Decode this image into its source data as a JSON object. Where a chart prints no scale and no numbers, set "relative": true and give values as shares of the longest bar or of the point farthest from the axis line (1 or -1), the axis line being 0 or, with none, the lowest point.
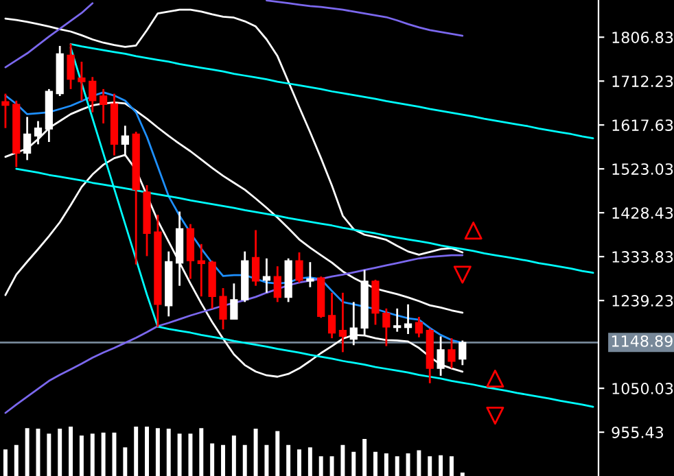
{
  "chart_data": [
    {
      "type": "candlestick",
      "categories": [
        null,
        null,
        null,
        null,
        null,
        null,
        null,
        null,
        null,
        null,
        null,
        null,
        null,
        null,
        null,
        null,
        null,
        null,
        null,
        null,
        null,
        null,
        null,
        null,
        null,
        null,
        null,
        null,
        null,
        null,
        null,
        null,
        null,
        null,
        null,
        null,
        null,
        null,
        null,
        null,
        null,
        null,
        null,
        null,
        null,
        null,
        null,
        null,
        null,
        null,
        null,
        null,
        null,
        null,
        null
      ],
      "ohlc": [
        [
          1668,
          1685,
          1611,
          1660
        ],
        [
          1662,
          1670,
          1527,
          1557
        ],
        [
          1557,
          1635,
          1542,
          1598
        ],
        [
          1594,
          1626,
          1576,
          1611
        ],
        [
          1609,
          1695,
          1581,
          1690
        ],
        [
          1685,
          1788,
          1680,
          1771
        ],
        [
          1768,
          1793,
          1695,
          1716
        ],
        [
          1719,
          1754,
          1670,
          1711
        ],
        [
          1712,
          1721,
          1645,
          1670
        ],
        [
          1680,
          1695,
          1621,
          1662
        ],
        [
          1663,
          1685,
          1552,
          1576
        ],
        [
          1576,
          1616,
          1552,
          1594
        ],
        [
          1598,
          1603,
          1317,
          1478
        ],
        [
          1473,
          1488,
          1335,
          1384
        ],
        [
          1387,
          1424,
          1182,
          1231
        ],
        [
          1228,
          1345,
          1205,
          1323
        ],
        [
          1320,
          1431,
          1271,
          1394
        ],
        [
          1394,
          1404,
          1286,
          1325
        ],
        [
          1325,
          1361,
          1248,
          1319
        ],
        [
          1322,
          1325,
          1222,
          1248
        ],
        [
          1248,
          1266,
          1177,
          1199
        ],
        [
          1199,
          1276,
          1199,
          1241
        ],
        [
          1241,
          1345,
          1236,
          1325
        ],
        [
          1332,
          1391,
          1271,
          1281
        ],
        [
          1283,
          1330,
          1256,
          1291
        ],
        [
          1291,
          1313,
          1236,
          1246
        ],
        [
          1246,
          1330,
          1236,
          1325
        ],
        [
          1325,
          1343,
          1278,
          1283
        ],
        [
          1281,
          1322,
          1268,
          1286
        ],
        [
          1288,
          1291,
          1202,
          1205
        ],
        [
          1207,
          1256,
          1158,
          1169
        ],
        [
          1175,
          1256,
          1128,
          1162
        ],
        [
          1156,
          1236,
          1143,
          1180
        ],
        [
          1180,
          1305,
          1165,
          1281
        ],
        [
          1281,
          1284,
          1187,
          1212
        ],
        [
          1212,
          1222,
          1141,
          1182
        ],
        [
          1181,
          1222,
          1172,
          1185
        ],
        [
          1181,
          1231,
          1167,
          1189
        ],
        [
          1192,
          1204,
          1160,
          1169
        ],
        [
          1175,
          1179,
          1061,
          1093
        ],
        [
          1093,
          1162,
          1077,
          1133
        ],
        [
          1133,
          1158,
          1093,
          1108
        ],
        [
          1113,
          1153,
          1100,
          1149
        ],
        null,
        null,
        null,
        null,
        null,
        null,
        null,
        null,
        null,
        null,
        null,
        null
      ],
      "colors": [
        "#ff0000",
        "#ff0000",
        "#ffffff",
        "#ffffff",
        "#ffffff",
        "#ffffff",
        "#ff0000",
        "#ff0000",
        "#ff0000",
        "#ff0000",
        "#ff0000",
        "#ffffff",
        "#ff0000",
        "#ff0000",
        "#ff0000",
        "#ffffff",
        "#ffffff",
        "#ff0000",
        "#ff0000",
        "#ff0000",
        "#ff0000",
        "#ffffff",
        "#ffffff",
        "#ff0000",
        "#ffffff",
        "#ff0000",
        "#ffffff",
        "#ff0000",
        "#ffffff",
        "#ff0000",
        "#ff0000",
        "#ff0000",
        "#ffffff",
        "#ffffff",
        "#ff0000",
        "#ff0000",
        "#ffffff",
        "#ffffff",
        "#ff0000",
        "#ff0000",
        "#ffffff",
        "#ff0000",
        "#ffffff",
        null,
        null,
        null,
        null,
        null,
        null,
        null,
        null,
        null,
        null,
        null,
        null
      ],
      "series": [
        {
          "type": "line",
          "color": "#ffffff",
          "values": [
            1847,
            1844,
            1840,
            1835,
            1830,
            1824,
            1819,
            1811,
            1802,
            1795,
            1790,
            1786,
            1789,
            1822,
            1858,
            1862,
            1866,
            1866,
            1862,
            1856,
            1851,
            1849,
            1841,
            1830,
            1802,
            1766,
            1711,
            1656,
            1602,
            1546,
            1487,
            1422,
            1393,
            1381,
            1376,
            1370,
            1357,
            1345,
            1338,
            1344,
            1350,
            1352,
            1343,
            null,
            null,
            null,
            null,
            null,
            null,
            null,
            null,
            null,
            null,
            null,
            null
          ]
        },
        {
          "type": "line",
          "color": "#ffffff",
          "values": [
            1549,
            1558,
            1567,
            1587,
            1611,
            1626,
            1641,
            1651,
            1660,
            1664,
            1666,
            1664,
            1648,
            1631,
            1612,
            1594,
            1577,
            1561,
            1543,
            1525,
            1508,
            1493,
            1478,
            1459,
            1439,
            1418,
            1395,
            1371,
            1353,
            1337,
            1321,
            1302,
            1288,
            1276,
            1265,
            1259,
            1253,
            1246,
            1238,
            1229,
            1224,
            1218,
            1213,
            null,
            null,
            null,
            null,
            null,
            null,
            null,
            null,
            null,
            null,
            null,
            null
          ]
        },
        {
          "type": "line",
          "color": "#ffffff",
          "values": [
            1251,
            1295,
            1323,
            1350,
            1378,
            1408,
            1445,
            1484,
            1511,
            1532,
            1546,
            1553,
            1521,
            1466,
            1411,
            1366,
            1321,
            1276,
            1233,
            1193,
            1157,
            1123,
            1100,
            1086,
            1078,
            1075,
            1081,
            1093,
            1109,
            1126,
            1141,
            1157,
            1165,
            1164,
            1158,
            1154,
            1153,
            1151,
            1137,
            1118,
            1101,
            1093,
            1086,
            null,
            null,
            null,
            null,
            null,
            null,
            null,
            null,
            null,
            null,
            null,
            null
          ]
        },
        {
          "type": "line",
          "color": "#1e90ff",
          "values": [
            1681,
            1663,
            1641,
            1643,
            1645,
            1652,
            1659,
            1669,
            1680,
            1688,
            1681,
            1670,
            1645,
            1592,
            1528,
            1464,
            1422,
            1385,
            1351,
            1320,
            1292,
            1294,
            1294,
            1286,
            1278,
            1276,
            1278,
            1287,
            1289,
            1285,
            1260,
            1236,
            1231,
            1226,
            1221,
            1214,
            1207,
            1201,
            1198,
            1180,
            1165,
            1154,
            1148,
            null,
            null,
            null,
            null,
            null,
            null,
            null,
            null,
            null,
            null,
            null,
            null
          ]
        },
        {
          "type": "line",
          "color": "#7b68ee",
          "values": [
            997,
            1015,
            1032,
            1049,
            1066,
            1079,
            1091,
            1103,
            1116,
            1127,
            1137,
            1148,
            1159,
            1171,
            1184,
            1191,
            1199,
            1207,
            1214,
            1221,
            1228,
            1234,
            1240,
            1247,
            1256,
            1264,
            1272,
            1278,
            1282,
            1286,
            1291,
            1295,
            1300,
            1305,
            1310,
            1315,
            1320,
            1325,
            1330,
            1333,
            1335,
            1337,
            1337,
            null,
            null,
            null,
            null,
            null,
            null,
            null,
            null,
            null,
            null,
            null,
            null
          ]
        },
        {
          "type": "line",
          "color": "#7b68ee",
          "values": [
            1742,
            1757,
            1772,
            1790,
            1808,
            1825,
            1842,
            1859,
            1880,
            null,
            null,
            null,
            null,
            null,
            null,
            null,
            null,
            null,
            null,
            null,
            null,
            null,
            null,
            null,
            1886,
            1883,
            1880,
            1877,
            1874,
            1872,
            1869,
            1866,
            1862,
            1858,
            1854,
            1850,
            1843,
            1835,
            1828,
            1822,
            1818,
            1814,
            1810,
            null,
            null,
            null,
            null,
            null,
            null,
            null,
            null,
            null,
            null,
            null,
            null
          ]
        },
        {
          "type": "line",
          "color": "#00ffff",
          "values": [
            null,
            null,
            null,
            null,
            null,
            null,
            1792,
            1787,
            1783,
            1779,
            1775,
            1771,
            1766,
            1762,
            1758,
            1754,
            1749,
            1745,
            1741,
            1737,
            1733,
            1728,
            1724,
            1720,
            1716,
            1711,
            1707,
            1703,
            1699,
            1695,
            1690,
            1686,
            1682,
            1678,
            1674,
            1669,
            1665,
            1661,
            1657,
            1652,
            1648,
            1644,
            1640,
            1636,
            1631,
            1627,
            1623,
            1619,
            1615,
            1610,
            1606,
            1602,
            1598,
            1593,
            1589
          ]
        },
        {
          "type": "line",
          "color": "#00ffff",
          "values": [
            null,
            1523,
            1519,
            1515,
            1510,
            1506,
            1502,
            1498,
            1493,
            1489,
            1485,
            1481,
            1477,
            1472,
            1468,
            1464,
            1460,
            1455,
            1451,
            1447,
            1443,
            1439,
            1434,
            1430,
            1426,
            1422,
            1417,
            1413,
            1409,
            1405,
            1401,
            1396,
            1392,
            1388,
            1384,
            1379,
            1375,
            1371,
            1367,
            1363,
            1358,
            1354,
            1350,
            1346,
            1341,
            1337,
            1333,
            1329,
            1325,
            1320,
            1316,
            1312,
            1308,
            1303,
            1299
          ]
        },
        {
          "type": "line",
          "color": "#00ffff",
          "values": [
            null,
            null,
            null,
            null,
            null,
            null,
            null,
            null,
            null,
            null,
            null,
            null,
            null,
            null,
            1183,
            1178,
            1174,
            1170,
            1165,
            1161,
            1157,
            1152,
            1148,
            1144,
            1140,
            1135,
            1131,
            1127,
            1122,
            1118,
            1114,
            1109,
            1105,
            1101,
            1096,
            1092,
            1088,
            1084,
            1079,
            1075,
            1071,
            1066,
            1062,
            1058,
            1053,
            1049,
            1045,
            1040,
            1036,
            1032,
            1028,
            1023,
            1019,
            1015,
            1010
          ]
        },
        {
          "type": "line",
          "color": "#00ffff",
          "values": [
            null,
            null,
            null,
            null,
            null,
            null,
            1784,
            1708,
            1632,
            1556,
            1480,
            1404,
            1328,
            1252,
            1183,
            null,
            null,
            null,
            null,
            null,
            null,
            null,
            null,
            null,
            null,
            null,
            null,
            null,
            null,
            null,
            null,
            null,
            null,
            null,
            null,
            null,
            null,
            null,
            null,
            null,
            null,
            null,
            null,
            null,
            null,
            null,
            null,
            null,
            null,
            null,
            null,
            null,
            null,
            null,
            null
          ]
        },
        {
          "type": "scatter",
          "marker": "triangle",
          "color": "#ff0000",
          "values": [
            null,
            null,
            null,
            null,
            null,
            null,
            null,
            null,
            null,
            null,
            null,
            null,
            null,
            null,
            null,
            null,
            null,
            null,
            null,
            null,
            null,
            null,
            null,
            null,
            null,
            null,
            null,
            null,
            null,
            null,
            null,
            null,
            null,
            null,
            null,
            null,
            null,
            null,
            null,
            null,
            null,
            null,
            null,
            1390,
            null,
            1071,
            null,
            null,
            null,
            null,
            null,
            null,
            null,
            null,
            null
          ]
        },
        {
          "type": "scatter",
          "marker": "triangle_down",
          "color": "#ff0000",
          "values": [
            null,
            null,
            null,
            null,
            null,
            null,
            null,
            null,
            null,
            null,
            null,
            null,
            null,
            null,
            null,
            null,
            null,
            null,
            null,
            null,
            null,
            null,
            null,
            null,
            null,
            null,
            null,
            null,
            null,
            null,
            null,
            null,
            null,
            null,
            null,
            null,
            null,
            null,
            null,
            null,
            null,
            null,
            1295,
            null,
            null,
            991,
            null,
            null,
            null,
            null,
            null,
            null,
            null,
            null,
            null
          ]
        }
      ],
      "ylim": [
        861,
        1887
      ],
      "yticks": [
        955.43,
        1050.03,
        1239.23,
        1333.83,
        1428.43,
        1523.03,
        1617.63,
        1712.23,
        1806.83
      ],
      "ref_lines": [
        {
          "axis": "y",
          "value": 1148.89,
          "label": "1148.89",
          "color": "#778899"
        }
      ],
      "tick_labels": "y"
    },
    {
      "type": "bar",
      "relative": true,
      "color": "#ffffff",
      "categories": [
        null,
        null,
        null,
        null,
        null,
        null,
        null,
        null,
        null,
        null,
        null,
        null,
        null,
        null,
        null,
        null,
        null,
        null,
        null,
        null,
        null,
        null,
        null,
        null,
        null,
        null,
        null,
        null,
        null,
        null,
        null,
        null,
        null,
        null,
        null,
        null,
        null,
        null,
        null,
        null,
        null,
        null,
        null,
        null,
        null,
        null,
        null,
        null,
        null,
        null,
        null,
        null,
        null,
        null,
        null
      ],
      "values": [
        0.52,
        0.61,
        0.95,
        0.94,
        0.84,
        0.94,
        0.98,
        0.8,
        0.84,
        0.86,
        0.86,
        0.56,
        0.98,
        1,
        0.95,
        0.94,
        0.84,
        0.84,
        0.95,
        0.64,
        0.61,
        0.8,
        0.61,
        0.94,
        0.61,
        0.89,
        0.61,
        0.52,
        0.56,
        0.38,
        0.38,
        0.61,
        0.47,
        0.73,
        0.47,
        0.44,
        0.38,
        0.44,
        0.5,
        0.38,
        0.4,
        0.38,
        0.05,
        null,
        null,
        null,
        null,
        null,
        null,
        null,
        null,
        null,
        null,
        null,
        null
      ],
      "tick_labels": false
    }
  ]
}
